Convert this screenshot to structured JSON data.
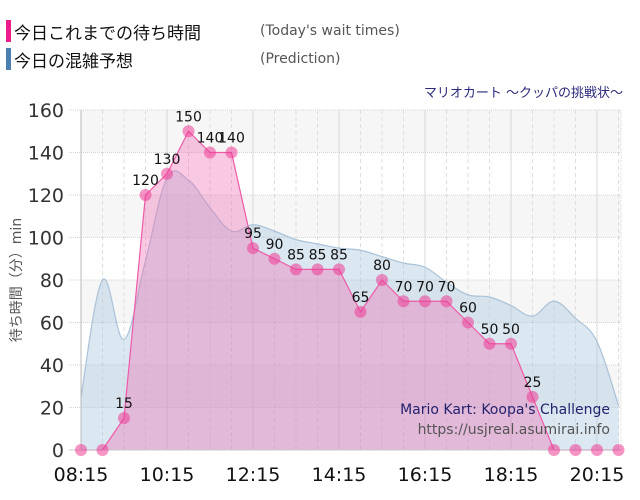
{
  "legend": [
    {
      "label_jp": "今日これまでの待ち時間",
      "label_en": "(Today's wait times)",
      "color": "#ec1c8c"
    },
    {
      "label_jp": "今日の混雑予想",
      "label_en": "(Prediction)",
      "color": "#4a7fb0"
    }
  ],
  "subtitle": "マリオカート ～クッパの挑戦状～",
  "watermark": {
    "title_en": "Mario Kart: Koopa's Challenge",
    "url": "https://usjreal.asumirai.info"
  },
  "chart_data": {
    "type": "area",
    "title": "マリオカート ～クッパの挑戦状～",
    "xlabel": "",
    "ylabel": "待ち時間（分）min",
    "ylim": [
      0,
      160
    ],
    "yticks": [
      0,
      20,
      40,
      60,
      80,
      100,
      120,
      140,
      160
    ],
    "xtick_labels": [
      "08:15",
      "10:15",
      "12:15",
      "14:15",
      "16:15",
      "18:15",
      "20:15"
    ],
    "grid": true,
    "x": [
      "08:15",
      "08:45",
      "09:15",
      "09:45",
      "10:15",
      "10:45",
      "11:15",
      "11:45",
      "12:15",
      "12:45",
      "13:15",
      "13:45",
      "14:15",
      "14:45",
      "15:15",
      "15:45",
      "16:15",
      "16:45",
      "17:15",
      "17:45",
      "18:15",
      "18:45",
      "19:15",
      "19:45",
      "20:15",
      "20:45"
    ],
    "series": [
      {
        "name": "今日これまでの待ち時間 (Today's wait times)",
        "color": "#ec1c8c",
        "values": [
          0,
          0,
          15,
          120,
          130,
          150,
          140,
          140,
          95,
          90,
          85,
          85,
          85,
          65,
          80,
          70,
          70,
          70,
          60,
          50,
          50,
          25,
          0,
          0,
          0,
          0
        ]
      },
      {
        "name": "今日の混雑予想 (Prediction)",
        "color": "#8fb0cc",
        "values": [
          25,
          80,
          52,
          89,
          128,
          127,
          114,
          103,
          106,
          103,
          99,
          97,
          95,
          94,
          91,
          88,
          86,
          79,
          73,
          72,
          68,
          63,
          70,
          62,
          51,
          21
        ]
      }
    ]
  }
}
